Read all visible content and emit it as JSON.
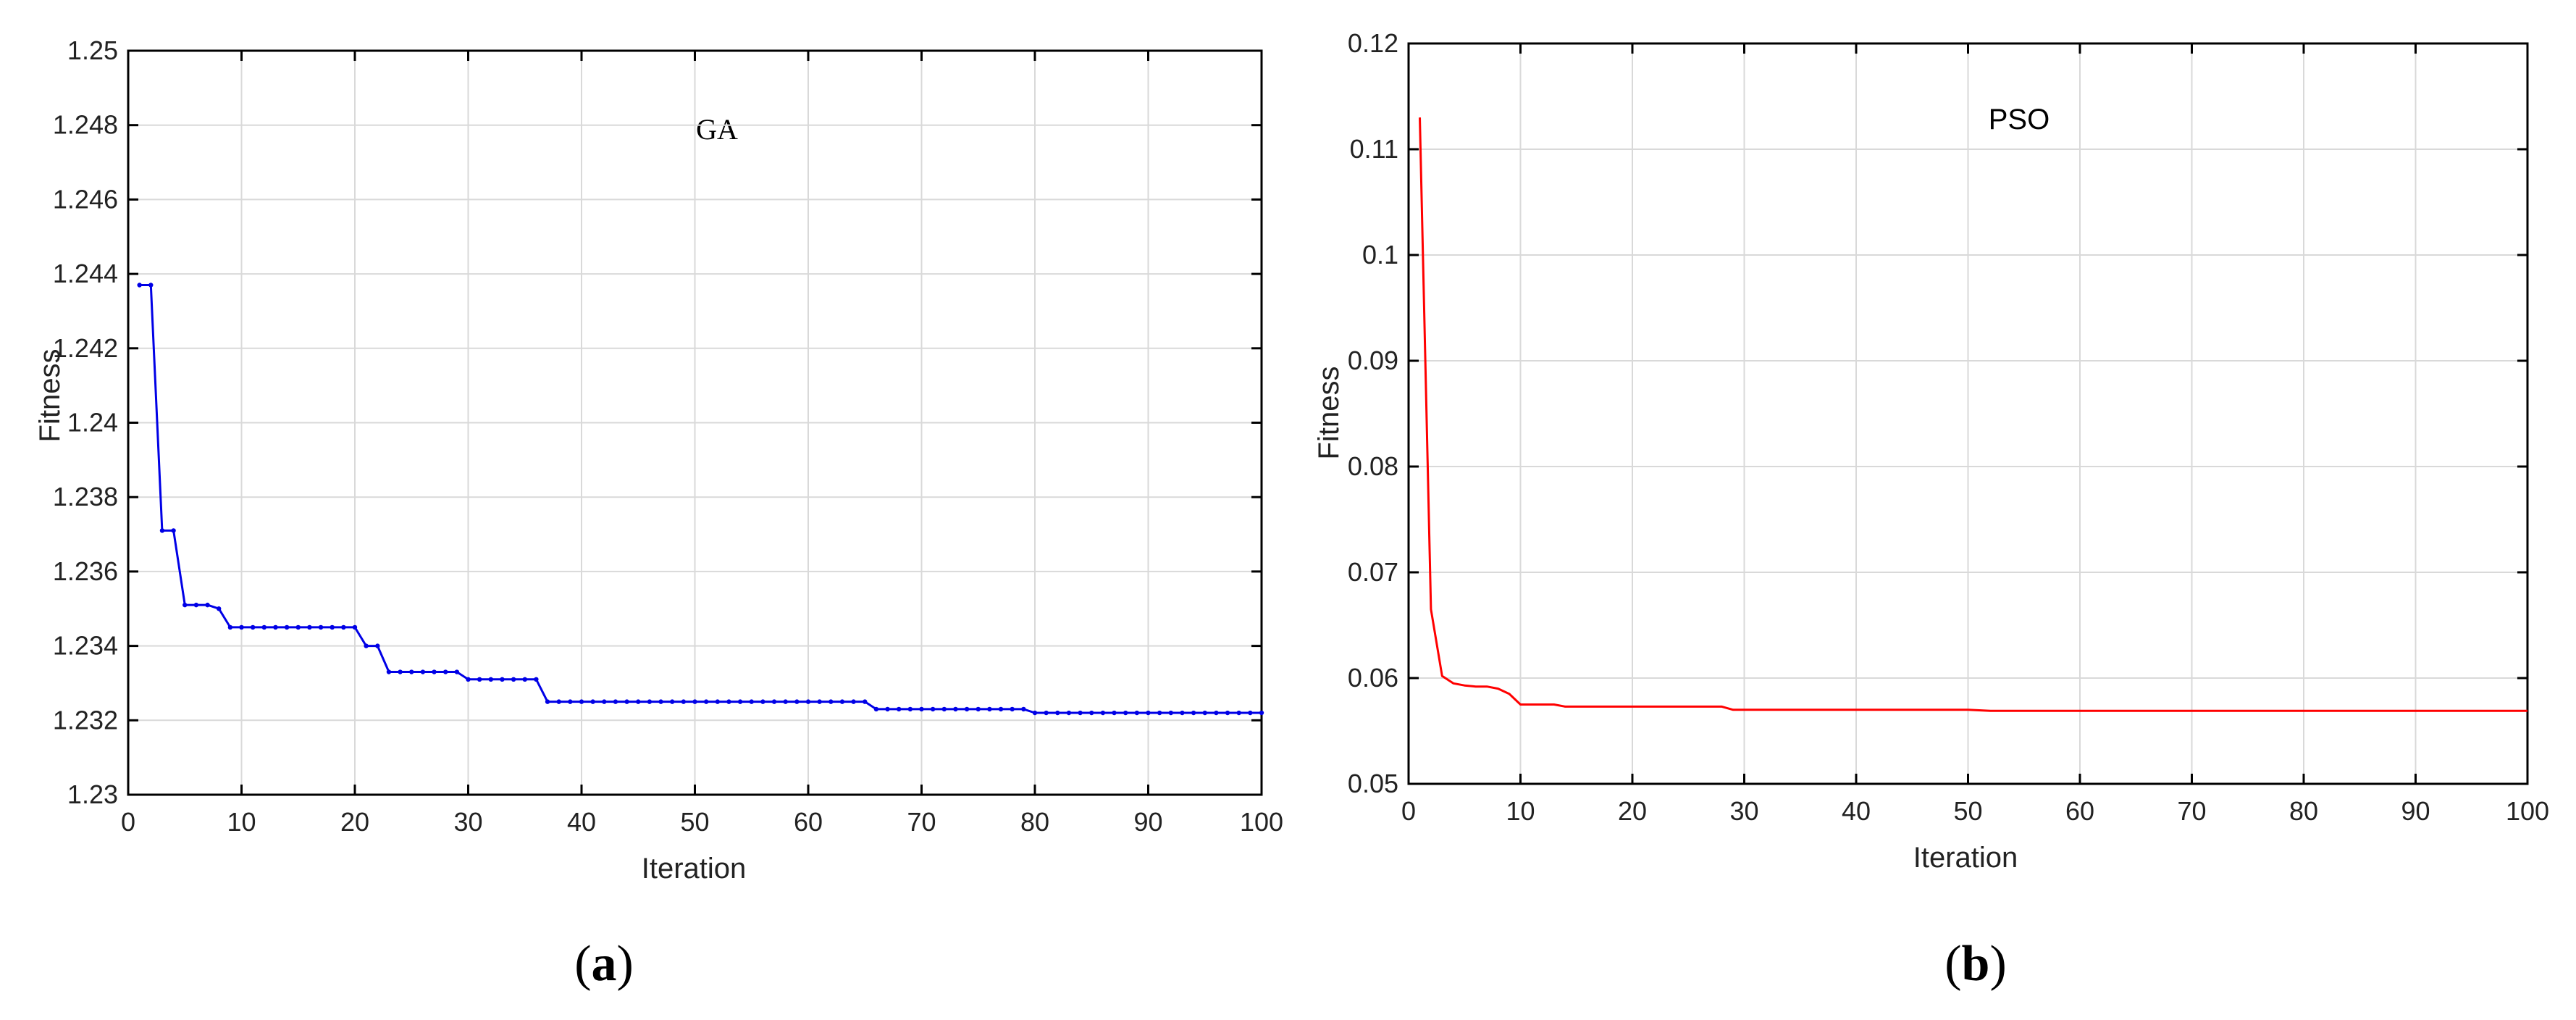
{
  "chart_data": [
    {
      "type": "line",
      "annotation": "GA",
      "xlabel": "Iteration",
      "ylabel": "Fitness",
      "xlim": [
        0,
        100
      ],
      "ylim": [
        1.23,
        1.25
      ],
      "grid": true,
      "xticks": [
        0,
        10,
        20,
        30,
        40,
        50,
        60,
        70,
        80,
        90,
        100
      ],
      "xtick_labels": [
        "0",
        "10",
        "20",
        "30",
        "40",
        "50",
        "60",
        "70",
        "80",
        "90",
        "100"
      ],
      "yticks": [
        1.23,
        1.232,
        1.234,
        1.236,
        1.238,
        1.24,
        1.242,
        1.244,
        1.246,
        1.248,
        1.25
      ],
      "ytick_labels": [
        "1.23",
        "1.232",
        "1.234",
        "1.236",
        "1.238",
        "1.24",
        "1.242",
        "1.244",
        "1.246",
        "1.248",
        "1.25"
      ],
      "markers": true,
      "series": [
        {
          "color": "#0000e6",
          "x": [
            1,
            2,
            3,
            4,
            5,
            6,
            7,
            8,
            9,
            10,
            11,
            12,
            13,
            14,
            15,
            16,
            17,
            18,
            19,
            20,
            21,
            22,
            23,
            24,
            25,
            26,
            27,
            28,
            29,
            30,
            31,
            32,
            33,
            34,
            35,
            36,
            37,
            38,
            39,
            40,
            41,
            42,
            43,
            44,
            45,
            46,
            47,
            48,
            49,
            50,
            51,
            52,
            53,
            54,
            55,
            56,
            57,
            58,
            59,
            60,
            61,
            62,
            63,
            64,
            65,
            66,
            67,
            68,
            69,
            70,
            71,
            72,
            73,
            74,
            75,
            76,
            77,
            78,
            79,
            80,
            81,
            82,
            83,
            84,
            85,
            86,
            87,
            88,
            89,
            90,
            91,
            92,
            93,
            94,
            95,
            96,
            97,
            98,
            99,
            100
          ],
          "y": [
            1.2437,
            1.2437,
            1.2371,
            1.2371,
            1.2351,
            1.2351,
            1.2351,
            1.235,
            1.2345,
            1.2345,
            1.2345,
            1.2345,
            1.2345,
            1.2345,
            1.2345,
            1.2345,
            1.2345,
            1.2345,
            1.2345,
            1.2345,
            1.234,
            1.234,
            1.2333,
            1.2333,
            1.2333,
            1.2333,
            1.2333,
            1.2333,
            1.2333,
            1.2331,
            1.2331,
            1.2331,
            1.2331,
            1.2331,
            1.2331,
            1.2331,
            1.2325,
            1.2325,
            1.2325,
            1.2325,
            1.2325,
            1.2325,
            1.2325,
            1.2325,
            1.2325,
            1.2325,
            1.2325,
            1.2325,
            1.2325,
            1.2325,
            1.2325,
            1.2325,
            1.2325,
            1.2325,
            1.2325,
            1.2325,
            1.2325,
            1.2325,
            1.2325,
            1.2325,
            1.2325,
            1.2325,
            1.2325,
            1.2325,
            1.2325,
            1.2323,
            1.2323,
            1.2323,
            1.2323,
            1.2323,
            1.2323,
            1.2323,
            1.2323,
            1.2323,
            1.2323,
            1.2323,
            1.2323,
            1.2323,
            1.2323,
            1.2322,
            1.2322,
            1.2322,
            1.2322,
            1.2322,
            1.2322,
            1.2322,
            1.2322,
            1.2322,
            1.2322,
            1.2322,
            1.2322,
            1.2322,
            1.2322,
            1.2322,
            1.2322,
            1.2322,
            1.2322,
            1.2322,
            1.2322,
            1.2322
          ]
        }
      ]
    },
    {
      "type": "line",
      "annotation": "PSO",
      "xlabel": "Iteration",
      "ylabel": "Fitness",
      "xlim": [
        0,
        100
      ],
      "ylim": [
        0.05,
        0.12
      ],
      "grid": true,
      "xticks": [
        0,
        10,
        20,
        30,
        40,
        50,
        60,
        70,
        80,
        90,
        100
      ],
      "xtick_labels": [
        "0",
        "10",
        "20",
        "30",
        "40",
        "50",
        "60",
        "70",
        "80",
        "90",
        "100"
      ],
      "yticks": [
        0.05,
        0.06,
        0.07,
        0.08,
        0.09,
        0.1,
        0.11,
        0.12
      ],
      "ytick_labels": [
        "0.05",
        "0.06",
        "0.07",
        "0.08",
        "0.09",
        "0.1",
        "0.11",
        "0.12"
      ],
      "markers": false,
      "series": [
        {
          "color": "#ff0000",
          "x": [
            1,
            2,
            3,
            4,
            5,
            6,
            7,
            8,
            9,
            10,
            11,
            12,
            13,
            14,
            20,
            28,
            29,
            30,
            40,
            50,
            52,
            55,
            60,
            70,
            80,
            90,
            100
          ],
          "y": [
            0.113,
            0.0665,
            0.0602,
            0.0595,
            0.0593,
            0.0592,
            0.0592,
            0.059,
            0.0585,
            0.0575,
            0.0575,
            0.0575,
            0.0575,
            0.0573,
            0.0573,
            0.0573,
            0.057,
            0.057,
            0.057,
            0.057,
            0.0569,
            0.0569,
            0.0569,
            0.0569,
            0.0569,
            0.0569,
            0.0569
          ]
        }
      ]
    }
  ],
  "panel_labels": [
    {
      "open": "(",
      "letter": "a",
      "close": ")"
    },
    {
      "open": "(",
      "letter": "b",
      "close": ")"
    }
  ]
}
